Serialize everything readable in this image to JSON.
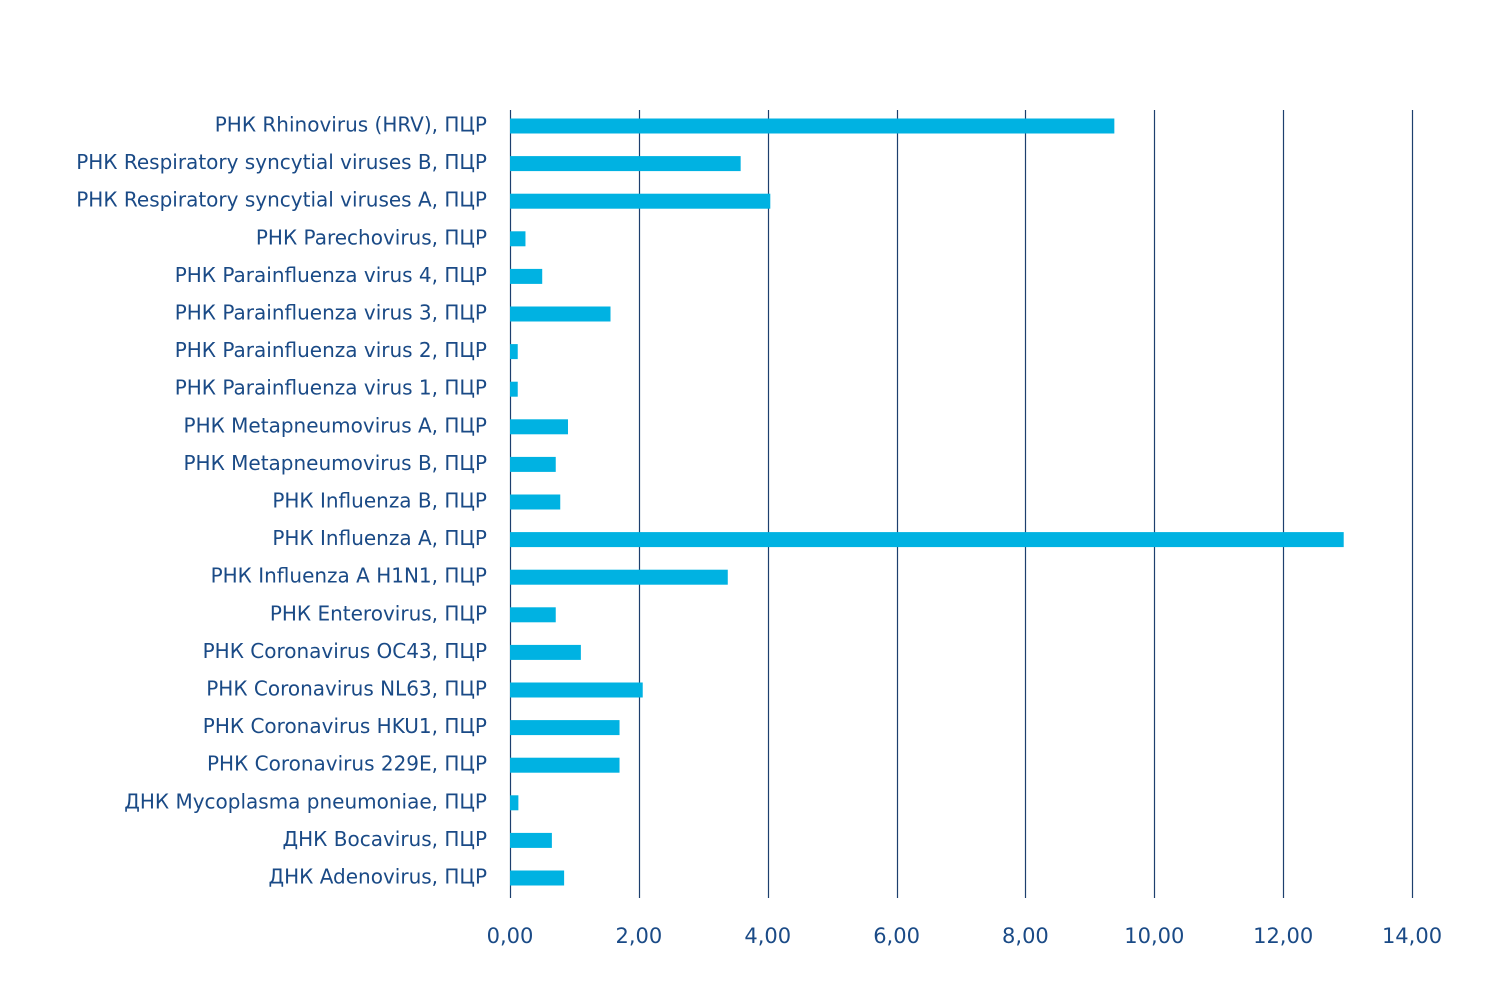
{
  "chart_data": {
    "type": "bar",
    "orientation": "horizontal",
    "title": "",
    "xlabel": "",
    "ylabel": "",
    "xlim": [
      0,
      14
    ],
    "x_ticks": [
      "0,00",
      "2,00",
      "4,00",
      "6,00",
      "8,00",
      "10,00",
      "12,00",
      "14,00"
    ],
    "x_tick_values": [
      0,
      2,
      4,
      6,
      8,
      10,
      12,
      14
    ],
    "grid": "vertical",
    "bar_color": "#00b2e2",
    "text_color": "#1a4a86",
    "grid_color": "#1d3f6e",
    "categories": [
      "РНК Rhinovirus (HRV), ПЦР",
      "РНК Respiratory syncytial viruses B, ПЦР",
      "РНК Respiratory syncytial viruses A, ПЦР",
      "РНК Parechovirus, ПЦР",
      "РНК Parainfluenza virus 4, ПЦР",
      "РНК Parainfluenza virus 3, ПЦР",
      "РНК Parainfluenza virus 2, ПЦР",
      "РНК Parainfluenza virus 1, ПЦР",
      "РНК Metapneumovirus A, ПЦР",
      "РНК Metapneumovirus B, ПЦР",
      "РНК Influenza B, ПЦР",
      "РНК Influenza A, ПЦР",
      "РНК Influenza A H1N1, ПЦР",
      "РНК Enterovirus, ПЦР",
      "РНК Coronavirus OC43, ПЦР",
      "РНК Coronavirus NL63, ПЦР",
      "РНК Coronavirus HKU1, ПЦР",
      "РНК Coronavirus 229E, ПЦР",
      "ДНК Mycoplasma pneumoniae, ПЦР",
      "ДНК Bocavirus, ПЦР",
      "ДНК Adenovirus, ПЦР"
    ],
    "values": [
      9.38,
      3.58,
      4.04,
      0.24,
      0.5,
      1.56,
      0.12,
      0.12,
      0.9,
      0.71,
      0.78,
      12.94,
      3.38,
      0.71,
      1.1,
      2.06,
      1.7,
      1.7,
      0.13,
      0.65,
      0.84
    ]
  }
}
